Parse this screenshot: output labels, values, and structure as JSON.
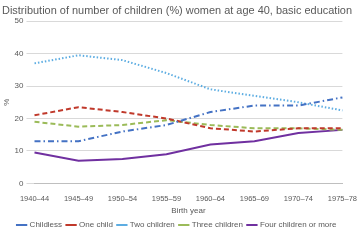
{
  "chart_data": {
    "type": "line",
    "title": "Distribution of number of children (%) women at age 40, basic education",
    "x_label": "Birth year",
    "y_label": "%",
    "categories": [
      "1940–44",
      "1945–49",
      "1950–54",
      "1955–59",
      "1960–64",
      "1965–69",
      "1970–74",
      "1975–78"
    ],
    "series": [
      {
        "name": "Childless",
        "color": "#4472c4",
        "line_style": "dash_dot",
        "values": [
          13,
          13,
          16,
          18,
          22,
          24,
          24,
          26.5
        ]
      },
      {
        "name": "One child",
        "color": "#c0392b",
        "line_style": "dashed",
        "values": [
          21,
          23.5,
          22,
          20,
          17,
          16,
          17,
          17
        ]
      },
      {
        "name": "Two children",
        "color": "#5dade2",
        "line_style": "dotted",
        "values": [
          37,
          39.5,
          38,
          34,
          29,
          27,
          25,
          22.5
        ]
      },
      {
        "name": "Three children",
        "color": "#9bbb59",
        "line_style": "dashed",
        "values": [
          19,
          17.5,
          18,
          19.5,
          18,
          17,
          17,
          16.5
        ]
      },
      {
        "name": "Four children or more",
        "color": "#7030a0",
        "line_style": "solid",
        "values": [
          9.5,
          7,
          7.5,
          9,
          12,
          13,
          15.5,
          16.5
        ]
      }
    ],
    "ylim": [
      0,
      50
    ],
    "yticks": [
      0,
      10,
      20,
      30,
      40,
      50
    ],
    "grid": true,
    "legend": "bottom"
  }
}
